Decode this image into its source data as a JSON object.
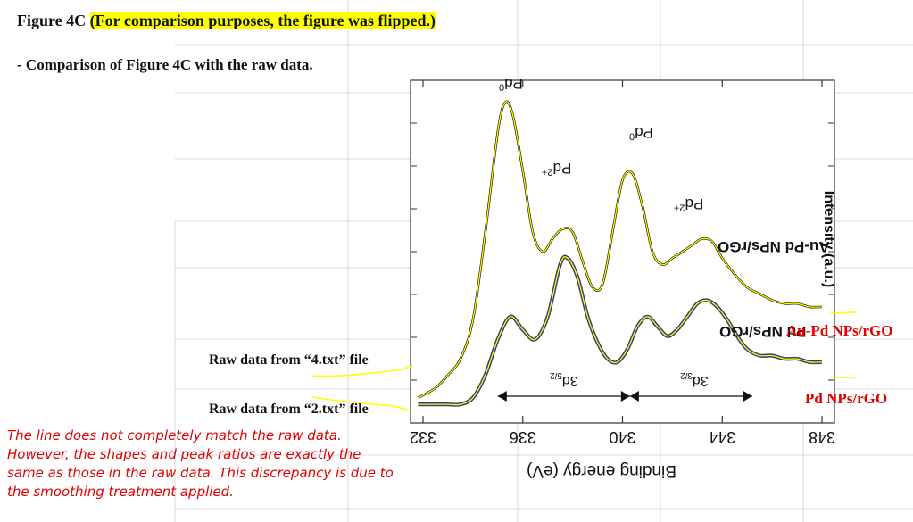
{
  "heading": {
    "prefix": "Figure 4C ",
    "highlight": "(For comparison purposes, the figure was flipped.)"
  },
  "subheading": "- Comparison of Figure 4C with the raw data.",
  "raw_labels": {
    "top": "Raw data from “4.txt” file",
    "bottom": "Raw data from “2.txt” file"
  },
  "series_labels": {
    "top": "Au-Pd NPs/rGO",
    "bottom": "Pd NPs/rGO"
  },
  "note": "The line does not completely match the raw data. However, the shapes and peak ratios are exactly the same as those in the raw data. This discrepancy is due to the smoothing treatment applied.",
  "colors": {
    "raw_trace": "#ffff00",
    "fit_top": "#111111",
    "fit_bottom": "#3a3a78",
    "accent_red": "#e00000",
    "highlight": "#ffff00"
  },
  "chart_data": {
    "type": "line",
    "orientation": "flipped-180",
    "xlabel": "Binding energy (eV)",
    "ylabel": "Intensity (a.u.)",
    "xticks": [
      "332",
      "336",
      "340",
      "344",
      "348"
    ],
    "xlim": [
      348.5,
      331.5
    ],
    "peak_labels": [
      {
        "text": "Pd",
        "sup": "0",
        "x": 335.7,
        "y": 0.98
      },
      {
        "text": "Pd",
        "sup": "2+",
        "x": 337.4,
        "y": 0.72
      },
      {
        "text": "Pd",
        "sup": "0",
        "x": 340.9,
        "y": 0.83
      },
      {
        "text": "Pd",
        "sup": "2+",
        "x": 342.7,
        "y": 0.61
      }
    ],
    "in_plot_labels": [
      {
        "text": "Au-Pd NPs/rGO",
        "x": 346.3,
        "y": 0.51
      },
      {
        "text": "Pd NPs/rGO",
        "x": 346.4,
        "y": 0.25
      }
    ],
    "spin_orbit": [
      {
        "label": "3d",
        "sub": "5/2",
        "x": 337.6,
        "y": 0.1
      },
      {
        "label": "3d",
        "sub": "3/2",
        "x": 342.8,
        "y": 0.1
      }
    ],
    "series": [
      {
        "name": "Au-Pd NPs/rGO",
        "x": [
          331.8,
          332.5,
          333.0,
          333.5,
          334.0,
          334.5,
          335.0,
          335.3,
          335.6,
          336.0,
          336.4,
          336.8,
          337.2,
          337.6,
          338.0,
          338.4,
          338.8,
          339.2,
          339.6,
          340.0,
          340.4,
          340.8,
          341.2,
          341.6,
          342.0,
          342.4,
          342.8,
          343.2,
          343.6,
          344.0,
          344.5,
          345.0,
          345.5,
          346.0,
          346.5,
          347.0,
          347.5,
          348.0
        ],
        "y": [
          0.05,
          0.08,
          0.12,
          0.17,
          0.29,
          0.56,
          0.87,
          0.96,
          0.92,
          0.75,
          0.56,
          0.5,
          0.54,
          0.57,
          0.56,
          0.47,
          0.39,
          0.4,
          0.56,
          0.72,
          0.74,
          0.64,
          0.5,
          0.46,
          0.48,
          0.5,
          0.52,
          0.54,
          0.53,
          0.48,
          0.43,
          0.39,
          0.37,
          0.35,
          0.34,
          0.34,
          0.33,
          0.33
        ]
      },
      {
        "name": "Pd NPs/rGO",
        "x": [
          331.8,
          332.5,
          333.0,
          333.5,
          334.0,
          334.5,
          335.0,
          335.5,
          336.0,
          336.5,
          337.0,
          337.5,
          337.8,
          338.2,
          338.6,
          339.0,
          339.4,
          339.8,
          340.2,
          340.6,
          341.0,
          341.4,
          341.8,
          342.2,
          342.6,
          343.0,
          343.4,
          343.8,
          344.2,
          344.6,
          345.0,
          345.5,
          346.0,
          346.5,
          347.0,
          347.5,
          348.0
        ],
        "y": [
          0.03,
          0.03,
          0.03,
          0.03,
          0.05,
          0.12,
          0.23,
          0.3,
          0.26,
          0.23,
          0.3,
          0.46,
          0.48,
          0.42,
          0.3,
          0.22,
          0.17,
          0.16,
          0.2,
          0.27,
          0.3,
          0.27,
          0.24,
          0.26,
          0.3,
          0.34,
          0.35,
          0.33,
          0.29,
          0.24,
          0.2,
          0.18,
          0.18,
          0.17,
          0.17,
          0.16,
          0.16
        ]
      }
    ]
  }
}
